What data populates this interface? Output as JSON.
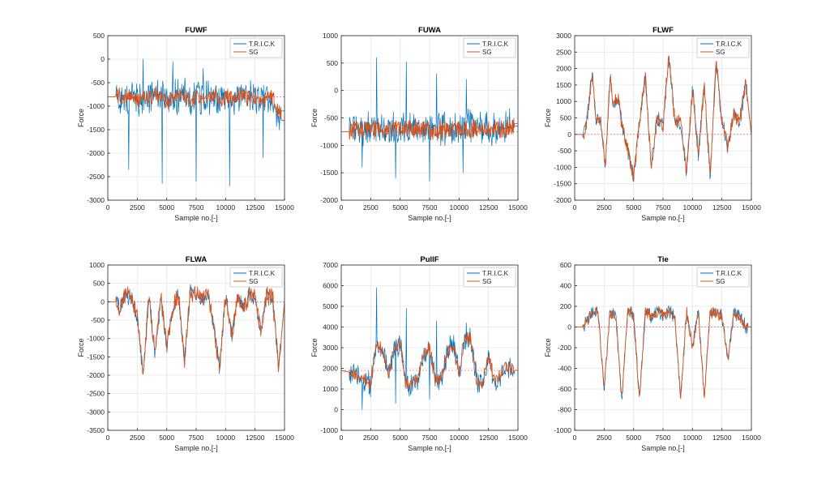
{
  "colors": {
    "trick": "#0072BD",
    "sg": "#D95319",
    "axis": "#262626",
    "grid": "#e6e6e6",
    "ref_line": "#e06060"
  },
  "chart_data": [
    {
      "type": "line",
      "title": "FUWF",
      "xlabel": "Sample no.[-]",
      "ylabel": "Force",
      "xlim": [
        0,
        15000
      ],
      "ylim": [
        -3000,
        500
      ],
      "xticks": [
        0,
        2500,
        5000,
        7500,
        10000,
        12500,
        15000
      ],
      "yticks": [
        -3000,
        -2500,
        -2000,
        -1500,
        -1000,
        -500,
        0,
        500
      ],
      "grid": true,
      "legend_position": "top-right",
      "ref_y": -800,
      "ref_x": [
        0,
        15000
      ],
      "series": [
        {
          "name": "T.R.I.C.K",
          "x": [
            0,
            700,
            1000,
            1500,
            2000,
            2500,
            3000,
            3500,
            4000,
            4500,
            5000,
            5500,
            6000,
            6500,
            7000,
            7500,
            8000,
            8500,
            9000,
            9500,
            10000,
            10500,
            11000,
            11500,
            12000,
            12500,
            13000,
            13500,
            14000,
            14500
          ],
          "y": [
            -800,
            -800,
            -800,
            -850,
            -750,
            -900,
            -800,
            -850,
            -750,
            -800,
            -900,
            -850,
            -800,
            -750,
            -900,
            -800,
            -850,
            -800,
            -750,
            -900,
            -800,
            -850,
            -800,
            -750,
            -850,
            -800,
            -900,
            -850,
            -800,
            -1300
          ],
          "noise": 320,
          "spikes_up": [
            0,
            -50,
            -200
          ],
          "spikes_down": [
            -2350,
            -2650,
            -2600,
            -2700,
            -2100
          ]
        },
        {
          "name": "SG",
          "x": [
            0,
            700,
            1000,
            1500,
            2000,
            2500,
            3000,
            3500,
            4000,
            4500,
            5000,
            5500,
            6000,
            6500,
            7000,
            7500,
            8000,
            8500,
            9000,
            9500,
            10000,
            10500,
            11000,
            11500,
            12000,
            12500,
            13000,
            13500,
            14000,
            14500
          ],
          "y": [
            -800,
            -800,
            -800,
            -850,
            -750,
            -900,
            -800,
            -850,
            -750,
            -800,
            -900,
            -850,
            -800,
            -750,
            -900,
            -800,
            -850,
            -800,
            -750,
            -900,
            -800,
            -850,
            -800,
            -750,
            -850,
            -800,
            -900,
            -850,
            -800,
            -1100
          ],
          "noise": 150
        }
      ]
    },
    {
      "type": "line",
      "title": "FUWA",
      "xlabel": "Sample no.[-]",
      "ylabel": "Force",
      "xlim": [
        0,
        15000
      ],
      "ylim": [
        -2000,
        1000
      ],
      "xticks": [
        0,
        2500,
        5000,
        7500,
        10000,
        12500,
        15000
      ],
      "yticks": [
        -2000,
        -1500,
        -1000,
        -500,
        0,
        500,
        1000
      ],
      "grid": true,
      "legend_position": "top-right",
      "ref_y": -750,
      "ref_x": [
        0,
        15000
      ],
      "series": [
        {
          "name": "T.R.I.C.K",
          "x": [
            0,
            700,
            1000,
            2000,
            3000,
            4000,
            5000,
            6000,
            7000,
            8000,
            9000,
            10000,
            11000,
            12000,
            13000,
            14000,
            14500
          ],
          "y": [
            -750,
            -750,
            -650,
            -700,
            -680,
            -720,
            -650,
            -700,
            -720,
            -700,
            -680,
            -700,
            -650,
            -680,
            -700,
            -660,
            -600
          ],
          "noise": 260,
          "spikes_up": [
            600,
            520,
            300,
            200
          ],
          "spikes_down": [
            -1400,
            -1600,
            -1650,
            -1500
          ]
        },
        {
          "name": "SG",
          "x": [
            0,
            700,
            1000,
            2000,
            3000,
            4000,
            5000,
            6000,
            7000,
            8000,
            9000,
            10000,
            11000,
            12000,
            13000,
            14000,
            14500
          ],
          "y": [
            -750,
            -750,
            -700,
            -720,
            -700,
            -720,
            -700,
            -700,
            -720,
            -740,
            -700,
            -700,
            -700,
            -700,
            -720,
            -700,
            -650
          ],
          "noise": 150
        }
      ]
    },
    {
      "type": "line",
      "title": "FLWF",
      "xlabel": "Sample no.[-]",
      "ylabel": "Force",
      "xlim": [
        0,
        15000
      ],
      "ylim": [
        -2000,
        3000
      ],
      "xticks": [
        0,
        2500,
        5000,
        7500,
        10000,
        12500,
        15000
      ],
      "yticks": [
        -2000,
        -1500,
        -1000,
        -500,
        0,
        500,
        1000,
        1500,
        2000,
        2500,
        3000
      ],
      "grid": true,
      "legend_position": "top-right",
      "ref_y": 0,
      "ref_x": [
        0,
        15000
      ],
      "series": [
        {
          "name": "T.R.I.C.K",
          "x": [
            0,
            700,
            1000,
            1500,
            1800,
            2200,
            2600,
            3000,
            3300,
            3600,
            4000,
            4500,
            5000,
            5500,
            6000,
            6500,
            7000,
            7500,
            8000,
            8500,
            9000,
            9500,
            10000,
            10500,
            11000,
            11500,
            12000,
            12500,
            13000,
            13500,
            14000,
            14500,
            15000
          ],
          "y": [
            0,
            0,
            300,
            2000,
            400,
            500,
            -1000,
            1800,
            800,
            1200,
            400,
            -500,
            -1300,
            300,
            1800,
            -1000,
            500,
            300,
            2400,
            400,
            300,
            -1200,
            1400,
            -600,
            1500,
            -1300,
            2200,
            400,
            -400,
            600,
            300,
            1600,
            0
          ],
          "noise": 200
        },
        {
          "name": "SG",
          "x": [
            0,
            700,
            1000,
            1500,
            1800,
            2200,
            2600,
            3000,
            3300,
            3600,
            4000,
            4500,
            5000,
            5500,
            6000,
            6500,
            7000,
            7500,
            8000,
            8500,
            9000,
            9500,
            10000,
            10500,
            11000,
            11500,
            12000,
            12500,
            13000,
            13500,
            14000,
            14500,
            15000
          ],
          "y": [
            0,
            0,
            300,
            2000,
            400,
            500,
            -1000,
            1800,
            800,
            1200,
            400,
            -500,
            -1300,
            300,
            1800,
            -1000,
            500,
            300,
            2400,
            400,
            300,
            -1200,
            1400,
            -600,
            1500,
            -1300,
            2200,
            400,
            -400,
            600,
            300,
            1600,
            0
          ],
          "noise": 220
        }
      ]
    },
    {
      "type": "line",
      "title": "FLWA",
      "xlabel": "Sample no.[-]",
      "ylabel": "Force",
      "xlim": [
        0,
        15000
      ],
      "ylim": [
        -3500,
        1000
      ],
      "xticks": [
        0,
        2500,
        5000,
        7500,
        10000,
        12500,
        15000
      ],
      "yticks": [
        -3500,
        -3000,
        -2500,
        -2000,
        -1500,
        -1000,
        -500,
        0,
        500,
        1000
      ],
      "grid": true,
      "legend_position": "top-right",
      "ref_y": 0,
      "ref_x": [
        0,
        15000
      ],
      "series": [
        {
          "name": "T.R.I.C.K",
          "x": [
            0,
            700,
            1000,
            1500,
            2000,
            2500,
            3000,
            3500,
            4000,
            4500,
            5000,
            5500,
            6000,
            6500,
            7000,
            7500,
            8000,
            8500,
            9000,
            9500,
            10000,
            10500,
            11000,
            11500,
            12000,
            12500,
            13000,
            13500,
            14000,
            14500,
            15000
          ],
          "y": [
            0,
            0,
            -200,
            200,
            100,
            -400,
            -2000,
            200,
            -1500,
            100,
            -1200,
            -200,
            200,
            -1600,
            300,
            200,
            100,
            200,
            -700,
            -1800,
            200,
            -1000,
            100,
            -200,
            200,
            100,
            -800,
            200,
            100,
            -1800,
            0
          ],
          "noise": 200
        },
        {
          "name": "SG",
          "x": [
            0,
            700,
            1000,
            1500,
            2000,
            2500,
            3000,
            3500,
            4000,
            4500,
            5000,
            5500,
            6000,
            6500,
            7000,
            7500,
            8000,
            8500,
            9000,
            9500,
            10000,
            10500,
            11000,
            11500,
            12000,
            12500,
            13000,
            13500,
            14000,
            14500,
            15000
          ],
          "y": [
            0,
            0,
            -200,
            200,
            100,
            -400,
            -2000,
            200,
            -1500,
            100,
            -1200,
            -200,
            200,
            -1600,
            300,
            200,
            100,
            200,
            -700,
            -1800,
            200,
            -1000,
            100,
            -200,
            200,
            100,
            -800,
            200,
            100,
            -1800,
            0
          ],
          "noise": 220
        }
      ]
    },
    {
      "type": "line",
      "title": "PullF",
      "xlabel": "Sample no.[-]",
      "ylabel": "Force",
      "xlim": [
        0,
        15000
      ],
      "ylim": [
        -1000,
        7000
      ],
      "xticks": [
        0,
        2500,
        5000,
        7500,
        10000,
        12500,
        15000
      ],
      "yticks": [
        -1000,
        0,
        1000,
        2000,
        3000,
        4000,
        5000,
        6000,
        7000
      ],
      "grid": true,
      "legend_position": "top-right",
      "ref_y": 1900,
      "ref_x": [
        0,
        15000
      ],
      "series": [
        {
          "name": "T.R.I.C.K",
          "x": [
            0,
            800,
            1500,
            2000,
            2500,
            3000,
            3500,
            4000,
            4500,
            5000,
            5500,
            6000,
            6500,
            7000,
            7500,
            8000,
            8500,
            9000,
            9500,
            10000,
            10500,
            11000,
            11500,
            12000,
            12500,
            13000,
            13500,
            14000,
            14500
          ],
          "y": [
            1900,
            1800,
            1600,
            1400,
            1200,
            3200,
            2900,
            1700,
            3000,
            3200,
            1200,
            1300,
            1400,
            2700,
            3000,
            1400,
            1500,
            2800,
            3200,
            1700,
            3400,
            3400,
            1400,
            1200,
            2600,
            1400,
            1600,
            2200,
            1900
          ],
          "noise": 500,
          "spikes_up": [
            5900,
            4900,
            4300,
            4200
          ],
          "spikes_down": [
            0,
            300,
            500
          ]
        },
        {
          "name": "SG",
          "x": [
            0,
            800,
            1500,
            2000,
            2500,
            3000,
            3500,
            4000,
            4500,
            5000,
            5500,
            6000,
            6500,
            7000,
            7500,
            8000,
            8500,
            9000,
            9500,
            10000,
            10500,
            11000,
            11500,
            12000,
            12500,
            13000,
            13500,
            14000,
            14500
          ],
          "y": [
            1900,
            1800,
            1600,
            1400,
            1200,
            3200,
            2900,
            1700,
            3000,
            3200,
            1200,
            1300,
            1400,
            2700,
            3000,
            1400,
            1500,
            2800,
            3200,
            1700,
            3400,
            3400,
            1400,
            1200,
            2600,
            1400,
            1600,
            2200,
            1900
          ],
          "noise": 280
        }
      ]
    },
    {
      "type": "line",
      "title": "Tie",
      "xlabel": "Sample no.[-]",
      "ylabel": "Force",
      "xlim": [
        0,
        15000
      ],
      "ylim": [
        -1000,
        600
      ],
      "xticks": [
        0,
        2500,
        5000,
        7500,
        10000,
        12500,
        15000
      ],
      "yticks": [
        -1000,
        -800,
        -600,
        -400,
        -200,
        0,
        200,
        400,
        600
      ],
      "grid": true,
      "legend_position": "top-right",
      "ref_y": 0,
      "ref_x": [
        0,
        15000
      ],
      "series": [
        {
          "name": "T.R.I.C.K",
          "x": [
            0,
            700,
            1000,
            1500,
            2000,
            2500,
            3000,
            3500,
            4000,
            4500,
            5000,
            5500,
            6000,
            6500,
            7000,
            7500,
            8000,
            8500,
            9000,
            9500,
            10000,
            10500,
            11000,
            11500,
            12000,
            12500,
            13000,
            13500,
            14000,
            14500,
            15000
          ],
          "y": [
            0,
            0,
            50,
            150,
            130,
            -600,
            150,
            100,
            -700,
            150,
            120,
            -700,
            150,
            100,
            150,
            120,
            150,
            100,
            -700,
            150,
            -200,
            150,
            -700,
            150,
            130,
            100,
            -300,
            120,
            100,
            0,
            0
          ],
          "noise": 60
        },
        {
          "name": "SG",
          "x": [
            0,
            700,
            1000,
            1500,
            2000,
            2500,
            3000,
            3500,
            4000,
            4500,
            5000,
            5500,
            6000,
            6500,
            7000,
            7500,
            8000,
            8500,
            9000,
            9500,
            10000,
            10500,
            11000,
            11500,
            12000,
            12500,
            13000,
            13500,
            14000,
            14500,
            15000
          ],
          "y": [
            0,
            0,
            50,
            150,
            130,
            -600,
            150,
            100,
            -700,
            150,
            120,
            -700,
            150,
            100,
            150,
            120,
            150,
            100,
            -700,
            150,
            -200,
            150,
            -700,
            150,
            130,
            100,
            -300,
            120,
            100,
            0,
            0
          ],
          "noise": 50
        }
      ]
    }
  ]
}
